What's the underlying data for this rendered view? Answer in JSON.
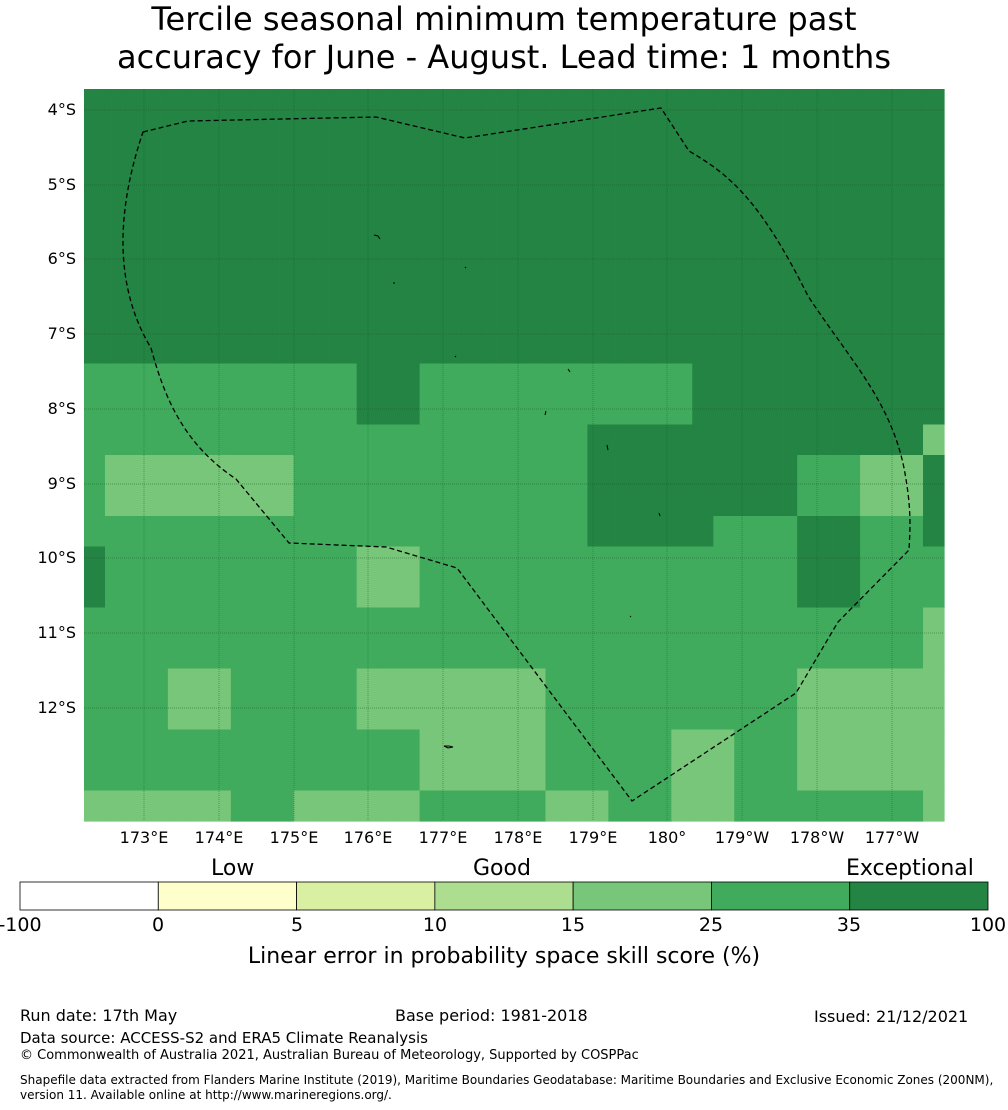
{
  "title": {
    "line1": "Tercile seasonal minimum temperature past",
    "line2": "accuracy for June - August. Lead time: 1 months"
  },
  "map": {
    "lat_labels": [
      "4°S",
      "5°S",
      "6°S",
      "7°S",
      "8°S",
      "9°S",
      "10°S",
      "11°S",
      "12°S"
    ],
    "lon_labels": [
      "173°E",
      "174°E",
      "175°E",
      "176°E",
      "177°E",
      "178°E",
      "179°E",
      "180°",
      "179°W",
      "178°W",
      "177°W"
    ],
    "grid": [
      [
        6,
        6,
        6,
        6,
        6,
        6,
        6,
        6,
        6,
        6,
        6,
        6,
        6,
        6,
        6,
        6,
        6,
        6,
        6,
        6,
        6,
        6,
        6,
        6,
        6,
        6,
        6,
        6,
        6,
        6,
        6,
        6,
        6,
        6,
        6,
        6,
        6,
        6,
        6,
        6,
        6
      ],
      [
        6,
        6,
        6,
        6,
        6,
        6,
        6,
        6,
        6,
        6,
        6,
        6,
        6,
        6,
        6,
        6,
        6,
        6,
        6,
        6,
        6,
        6,
        6,
        6,
        6,
        6,
        6,
        6,
        6,
        6,
        6,
        6,
        6,
        6,
        6,
        6,
        6,
        6,
        6,
        6,
        6
      ],
      [
        6,
        6,
        6,
        6,
        6,
        6,
        6,
        6,
        6,
        6,
        6,
        6,
        6,
        6,
        6,
        6,
        6,
        6,
        6,
        6,
        6,
        6,
        6,
        6,
        6,
        6,
        6,
        6,
        6,
        6,
        6,
        6,
        6,
        6,
        6,
        6,
        6,
        6,
        6,
        6,
        6
      ],
      [
        6,
        6,
        6,
        6,
        6,
        6,
        6,
        6,
        6,
        6,
        6,
        6,
        6,
        6,
        6,
        6,
        6,
        6,
        6,
        6,
        6,
        6,
        6,
        6,
        6,
        6,
        6,
        6,
        6,
        6,
        6,
        6,
        6,
        6,
        6,
        6,
        6,
        6,
        6,
        6,
        6
      ],
      [
        6,
        6,
        6,
        6,
        6,
        6,
        6,
        6,
        6,
        6,
        6,
        6,
        6,
        6,
        6,
        6,
        6,
        6,
        6,
        6,
        6,
        6,
        6,
        6,
        6,
        6,
        6,
        6,
        6,
        6,
        6,
        6,
        6,
        6,
        6,
        6,
        6,
        6,
        6,
        6,
        6
      ],
      [
        6,
        6,
        6,
        6,
        6,
        6,
        6,
        6,
        6,
        6,
        6,
        6,
        6,
        6,
        6,
        6,
        6,
        6,
        6,
        6,
        6,
        6,
        6,
        6,
        6,
        6,
        6,
        6,
        6,
        6,
        6,
        6,
        6,
        6,
        6,
        6,
        6,
        6,
        6,
        6,
        6
      ],
      [
        6,
        6,
        6,
        6,
        6,
        6,
        6,
        6,
        6,
        6,
        6,
        6,
        6,
        6,
        6,
        6,
        6,
        6,
        6,
        6,
        6,
        6,
        6,
        6,
        6,
        6,
        6,
        6,
        6,
        6,
        6,
        6,
        6,
        6,
        6,
        6,
        6,
        6,
        6,
        6,
        6
      ],
      [
        6,
        6,
        6,
        6,
        6,
        6,
        6,
        6,
        6,
        6,
        6,
        6,
        6,
        6,
        6,
        6,
        6,
        6,
        6,
        6,
        6,
        6,
        6,
        6,
        6,
        6,
        6,
        6,
        6,
        6,
        6,
        6,
        6,
        6,
        6,
        6,
        6,
        6,
        6,
        6,
        6
      ],
      [
        6,
        6,
        6,
        6,
        6,
        6,
        6,
        6,
        6,
        6,
        6,
        6,
        6,
        6,
        6,
        6,
        6,
        6,
        6,
        6,
        6,
        6,
        6,
        6,
        6,
        6,
        6,
        6,
        6,
        6,
        6,
        6,
        6,
        6,
        6,
        6,
        6,
        6,
        6,
        6,
        6
      ],
      [
        5,
        5,
        5,
        5,
        5,
        5,
        5,
        5,
        5,
        5,
        5,
        5,
        5,
        6,
        6,
        6,
        5,
        5,
        5,
        5,
        5,
        5,
        5,
        5,
        5,
        5,
        5,
        5,
        5,
        6,
        6,
        6,
        6,
        6,
        6,
        6,
        6,
        6,
        6,
        6,
        6
      ],
      [
        5,
        5,
        5,
        5,
        5,
        5,
        5,
        5,
        5,
        5,
        5,
        5,
        5,
        6,
        6,
        6,
        5,
        5,
        5,
        5,
        5,
        5,
        5,
        5,
        5,
        5,
        5,
        5,
        5,
        6,
        6,
        6,
        6,
        6,
        6,
        6,
        6,
        6,
        6,
        6,
        6
      ],
      [
        5,
        5,
        5,
        5,
        5,
        5,
        5,
        5,
        5,
        5,
        5,
        5,
        5,
        5,
        5,
        5,
        5,
        5,
        5,
        5,
        5,
        5,
        5,
        5,
        6,
        6,
        6,
        6,
        6,
        6,
        6,
        6,
        6,
        6,
        6,
        6,
        6,
        6,
        6,
        6,
        4
      ],
      [
        5,
        4,
        4,
        4,
        4,
        4,
        4,
        4,
        4,
        4,
        5,
        5,
        5,
        5,
        5,
        5,
        5,
        5,
        5,
        5,
        5,
        5,
        5,
        5,
        6,
        6,
        6,
        6,
        6,
        6,
        6,
        6,
        6,
        6,
        5,
        5,
        5,
        4,
        4,
        4,
        6
      ],
      [
        5,
        4,
        4,
        4,
        4,
        4,
        4,
        4,
        4,
        4,
        5,
        5,
        5,
        5,
        5,
        5,
        5,
        5,
        5,
        5,
        5,
        5,
        5,
        5,
        6,
        6,
        6,
        6,
        6,
        6,
        6,
        6,
        6,
        6,
        5,
        5,
        5,
        4,
        4,
        4,
        6
      ],
      [
        5,
        5,
        5,
        5,
        5,
        5,
        5,
        5,
        5,
        5,
        5,
        5,
        5,
        5,
        5,
        5,
        5,
        5,
        5,
        5,
        5,
        5,
        5,
        5,
        6,
        6,
        6,
        6,
        6,
        6,
        5,
        5,
        5,
        5,
        6,
        6,
        6,
        5,
        5,
        5,
        6
      ],
      [
        6,
        5,
        5,
        5,
        5,
        5,
        5,
        5,
        5,
        5,
        5,
        5,
        5,
        4,
        4,
        4,
        5,
        5,
        5,
        5,
        5,
        5,
        5,
        5,
        5,
        5,
        5,
        5,
        5,
        5,
        5,
        5,
        5,
        5,
        6,
        6,
        6,
        5,
        5,
        5,
        5
      ],
      [
        6,
        5,
        5,
        5,
        5,
        5,
        5,
        5,
        5,
        5,
        5,
        5,
        5,
        4,
        4,
        4,
        5,
        5,
        5,
        5,
        5,
        5,
        5,
        5,
        5,
        5,
        5,
        5,
        5,
        5,
        5,
        5,
        5,
        5,
        6,
        6,
        6,
        5,
        5,
        5,
        5
      ],
      [
        5,
        5,
        5,
        5,
        5,
        5,
        5,
        5,
        5,
        5,
        5,
        5,
        5,
        5,
        5,
        5,
        5,
        5,
        5,
        5,
        5,
        5,
        5,
        5,
        5,
        5,
        5,
        5,
        5,
        5,
        5,
        5,
        5,
        5,
        5,
        5,
        5,
        5,
        5,
        5,
        4
      ],
      [
        5,
        5,
        5,
        5,
        5,
        5,
        5,
        5,
        5,
        5,
        5,
        5,
        5,
        5,
        5,
        5,
        5,
        5,
        5,
        5,
        5,
        5,
        5,
        5,
        5,
        5,
        5,
        5,
        5,
        5,
        5,
        5,
        5,
        5,
        5,
        5,
        5,
        5,
        5,
        5,
        4
      ],
      [
        5,
        5,
        5,
        5,
        4,
        4,
        4,
        5,
        5,
        5,
        5,
        5,
        5,
        4,
        4,
        4,
        4,
        4,
        4,
        4,
        4,
        4,
        5,
        5,
        5,
        5,
        5,
        5,
        5,
        5,
        5,
        5,
        5,
        5,
        4,
        4,
        4,
        4,
        4,
        4,
        4
      ],
      [
        5,
        5,
        5,
        5,
        4,
        4,
        4,
        5,
        5,
        5,
        5,
        5,
        5,
        4,
        4,
        4,
        4,
        4,
        4,
        4,
        4,
        4,
        5,
        5,
        5,
        5,
        5,
        5,
        5,
        5,
        5,
        5,
        5,
        5,
        4,
        4,
        4,
        4,
        4,
        4,
        4
      ],
      [
        5,
        5,
        5,
        5,
        5,
        5,
        5,
        5,
        5,
        5,
        5,
        5,
        5,
        5,
        5,
        5,
        4,
        4,
        4,
        4,
        4,
        4,
        5,
        5,
        5,
        5,
        5,
        5,
        4,
        4,
        4,
        5,
        5,
        5,
        4,
        4,
        4,
        4,
        4,
        4,
        4
      ],
      [
        5,
        5,
        5,
        5,
        5,
        5,
        5,
        5,
        5,
        5,
        5,
        5,
        5,
        5,
        5,
        5,
        4,
        4,
        4,
        4,
        4,
        4,
        5,
        5,
        5,
        5,
        5,
        5,
        4,
        4,
        4,
        5,
        5,
        5,
        4,
        4,
        4,
        4,
        4,
        4,
        4
      ],
      [
        4,
        4,
        4,
        4,
        4,
        4,
        4,
        5,
        5,
        5,
        4,
        4,
        4,
        4,
        4,
        4,
        5,
        5,
        5,
        5,
        5,
        5,
        4,
        4,
        4,
        5,
        5,
        5,
        4,
        4,
        4,
        5,
        5,
        5,
        5,
        5,
        5,
        5,
        5,
        5,
        4
      ]
    ]
  },
  "colorbar": {
    "categories": [
      "Low",
      "Good",
      "Exceptional"
    ],
    "ticks": [
      "-100",
      "0",
      "5",
      "10",
      "15",
      "25",
      "35",
      "100"
    ],
    "colors": [
      "#ffffff",
      "#ffffcc",
      "#d9f0a3",
      "#addd8e",
      "#78c679",
      "#41ab5d",
      "#238443"
    ],
    "title": "Linear error in probability space skill score (%)"
  },
  "footer": {
    "run_date": "Run date: 17th May",
    "base_period": "Base period: 1981-2018",
    "issued": "Issued: 21/12/2021",
    "data_source": "Data source: ACCESS-S2 and ERA5 Climate Reanalysis",
    "copyright": "© Commonwealth of Australia 2021, Australian Bureau of Meteorology, Supported by COSPPac",
    "shapefile_line1": "Shapefile data extracted from Flanders Marine Institute (2019), Maritime Boundaries Geodatabase: Maritime Boundaries and Exclusive Economic Zones (200NM),",
    "shapefile_line2": "version 11. Available online at http://www.marineregions.org/."
  }
}
